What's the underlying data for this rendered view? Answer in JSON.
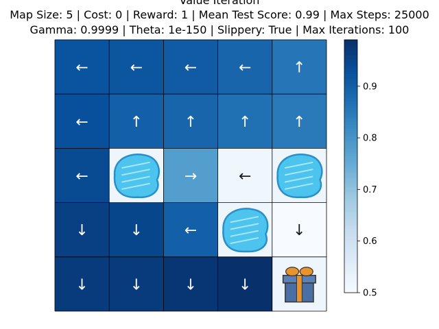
{
  "chart_data": {
    "type": "heatmap",
    "title": "Value Iteration",
    "subtitle_lines": [
      "Map Size: 5 | Cost: 0 | Reward: 1 | Mean Test Score: 0.99 | Max Steps: 25000",
      "Gamma: 0.9999 | Theta: 1e-150 | Slippery: True | Max Iterations: 100"
    ],
    "rows": 5,
    "cols": 5,
    "values": [
      [
        0.925,
        0.92,
        0.91,
        0.89,
        0.86
      ],
      [
        0.93,
        0.9,
        0.89,
        0.87,
        0.85
      ],
      [
        0.94,
        null,
        0.78,
        0.52,
        null
      ],
      [
        0.96,
        0.95,
        0.9,
        null,
        0.5
      ],
      [
        0.97,
        0.97,
        0.98,
        0.99,
        null
      ]
    ],
    "arrows": [
      [
        "←",
        "←",
        "←",
        "←",
        "↑"
      ],
      [
        "←",
        "↑",
        "↑",
        "↑",
        "↑"
      ],
      [
        "←",
        "",
        "→",
        "←",
        ""
      ],
      [
        "↓",
        "↓",
        "←",
        "",
        "↓"
      ],
      [
        "↓",
        "↓",
        "↓",
        "↓",
        ""
      ]
    ],
    "tiles": [
      [
        "",
        "",
        "",
        "",
        ""
      ],
      [
        "",
        "",
        "",
        "",
        ""
      ],
      [
        "",
        "hole",
        "",
        "",
        "hole"
      ],
      [
        "",
        "",
        "",
        "hole",
        ""
      ],
      [
        "",
        "",
        "",
        "",
        "goal"
      ]
    ],
    "colorbar": {
      "colormap": "Blues",
      "vmin": 0.5,
      "vmax": 0.99,
      "ticks": [
        0.5,
        0.6,
        0.7,
        0.8,
        0.9
      ],
      "tick_labels": [
        "0.5",
        "0.6",
        "0.7",
        "0.8",
        "0.9"
      ]
    },
    "xlabel": "",
    "ylabel": ""
  }
}
